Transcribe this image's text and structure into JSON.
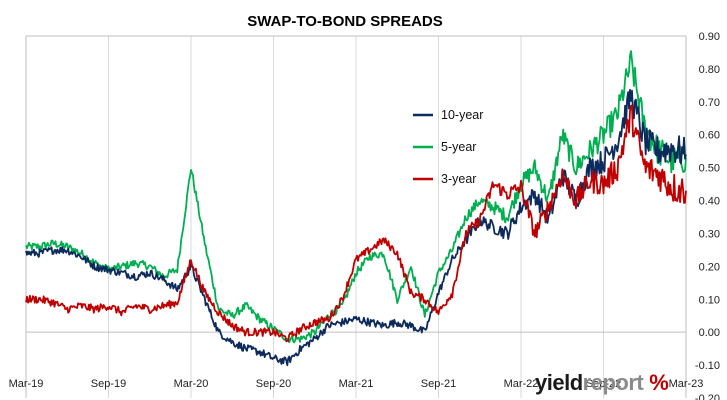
{
  "chart_data": {
    "type": "line",
    "title": "SWAP-TO-BOND SPREADS",
    "xlabel": "",
    "ylabel": "",
    "x_ticks": [
      "Mar-19",
      "Sep-19",
      "Mar-20",
      "Sep-20",
      "Mar-21",
      "Sep-21",
      "Mar-22",
      "Sep-22",
      "Mar-23"
    ],
    "ylim": [
      -0.2,
      0.9
    ],
    "y_ticks": [
      "-0.20",
      "-0.10",
      "0.00",
      "0.10",
      "0.20",
      "0.30",
      "0.40",
      "0.50",
      "0.60",
      "0.70",
      "0.80",
      "0.90"
    ],
    "y_axis_position": "right",
    "grid": "vertical",
    "legend_position": "center-right",
    "x": [
      "2019-03",
      "2019-04",
      "2019-05",
      "2019-06",
      "2019-07",
      "2019-08",
      "2019-09",
      "2019-10",
      "2019-11",
      "2019-12",
      "2020-01",
      "2020-02",
      "2020-03",
      "2020-04",
      "2020-05",
      "2020-06",
      "2020-07",
      "2020-08",
      "2020-09",
      "2020-10",
      "2020-11",
      "2020-12",
      "2021-01",
      "2021-02",
      "2021-03",
      "2021-04",
      "2021-05",
      "2021-06",
      "2021-07",
      "2021-08",
      "2021-09",
      "2021-10",
      "2021-11",
      "2021-12",
      "2022-01",
      "2022-02",
      "2022-03",
      "2022-04",
      "2022-05",
      "2022-06",
      "2022-07",
      "2022-08",
      "2022-09",
      "2022-10",
      "2022-11",
      "2022-12",
      "2023-01",
      "2023-02",
      "2023-03"
    ],
    "series": [
      {
        "name": "10-year",
        "color": "#0d2a5c",
        "values": [
          0.24,
          0.24,
          0.25,
          0.25,
          0.23,
          0.2,
          0.19,
          0.18,
          0.17,
          0.18,
          0.16,
          0.13,
          0.2,
          0.1,
          0.0,
          -0.03,
          -0.05,
          -0.06,
          -0.08,
          -0.09,
          -0.05,
          -0.02,
          0.02,
          0.03,
          0.04,
          0.03,
          0.02,
          0.03,
          0.02,
          0.0,
          0.12,
          0.22,
          0.28,
          0.34,
          0.32,
          0.3,
          0.38,
          0.42,
          0.34,
          0.48,
          0.4,
          0.5,
          0.52,
          0.58,
          0.72,
          0.58,
          0.55,
          0.56,
          0.54
        ]
      },
      {
        "name": "5-year",
        "color": "#00b050",
        "values": [
          0.26,
          0.26,
          0.27,
          0.26,
          0.24,
          0.21,
          0.19,
          0.2,
          0.21,
          0.2,
          0.17,
          0.19,
          0.5,
          0.27,
          0.07,
          0.05,
          0.08,
          0.04,
          0.01,
          -0.02,
          -0.02,
          0.0,
          0.05,
          0.08,
          0.18,
          0.23,
          0.24,
          0.1,
          0.2,
          0.05,
          0.18,
          0.25,
          0.35,
          0.4,
          0.38,
          0.35,
          0.45,
          0.5,
          0.4,
          0.6,
          0.5,
          0.55,
          0.6,
          0.66,
          0.82,
          0.62,
          0.55,
          0.52,
          0.53
        ]
      },
      {
        "name": "3-year",
        "color": "#c00000",
        "values": [
          0.1,
          0.1,
          0.09,
          0.07,
          0.08,
          0.07,
          0.08,
          0.06,
          0.08,
          0.07,
          0.08,
          0.09,
          0.22,
          0.12,
          0.06,
          0.02,
          0.0,
          0.0,
          0.0,
          -0.02,
          0.01,
          0.03,
          0.04,
          0.1,
          0.22,
          0.25,
          0.28,
          0.24,
          0.12,
          0.1,
          0.06,
          0.12,
          0.3,
          0.34,
          0.45,
          0.42,
          0.44,
          0.3,
          0.38,
          0.48,
          0.4,
          0.46,
          0.45,
          0.5,
          0.66,
          0.5,
          0.48,
          0.44,
          0.43
        ]
      }
    ]
  },
  "watermark": {
    "part1": "yield",
    "part2": "report",
    "symbol": "%"
  }
}
